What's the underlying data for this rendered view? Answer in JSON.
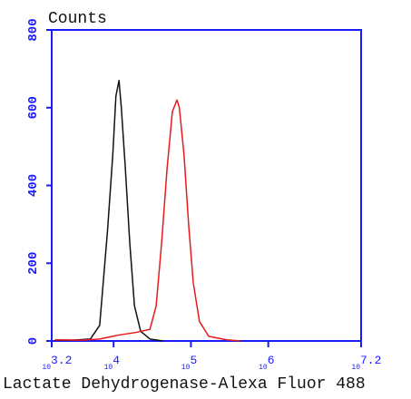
{
  "chart_data": {
    "type": "line",
    "y_axis_label": "Counts",
    "x_axis_label": "Lactate Dehydrogenase-Alexa Fluor 488",
    "log_x": true,
    "axis_color": "#1a1aff",
    "xlim": [
      3.2,
      7.2
    ],
    "xtick_base": "10",
    "xticks": [
      {
        "value": 3.2,
        "label": "3.2"
      },
      {
        "value": 4,
        "label": "4"
      },
      {
        "value": 5,
        "label": "5"
      },
      {
        "value": 6,
        "label": "6"
      },
      {
        "value": 7.2,
        "label": "7.2"
      }
    ],
    "ylim": [
      0,
      800
    ],
    "yticks": [
      0,
      200,
      400,
      600,
      800
    ],
    "series": [
      {
        "color": "#111111",
        "x": [
          3.24,
          3.47,
          3.7,
          3.82,
          3.92,
          3.99,
          4.03,
          4.07,
          4.1,
          4.15,
          4.21,
          4.27,
          4.35,
          4.47,
          4.64
        ],
        "values": [
          2,
          2,
          5,
          40,
          280,
          480,
          630,
          670,
          600,
          450,
          250,
          90,
          25,
          5,
          0
        ]
      },
      {
        "color": "#e8191c",
        "x": [
          3.24,
          3.59,
          3.82,
          4.06,
          4.29,
          4.47,
          4.55,
          4.62,
          4.69,
          4.76,
          4.82,
          4.85,
          4.91,
          4.97,
          5.03,
          5.11,
          5.23,
          5.46,
          5.64
        ],
        "values": [
          3,
          2,
          5,
          15,
          22,
          30,
          90,
          250,
          440,
          590,
          620,
          600,
          480,
          300,
          150,
          50,
          12,
          3,
          0
        ]
      }
    ]
  }
}
